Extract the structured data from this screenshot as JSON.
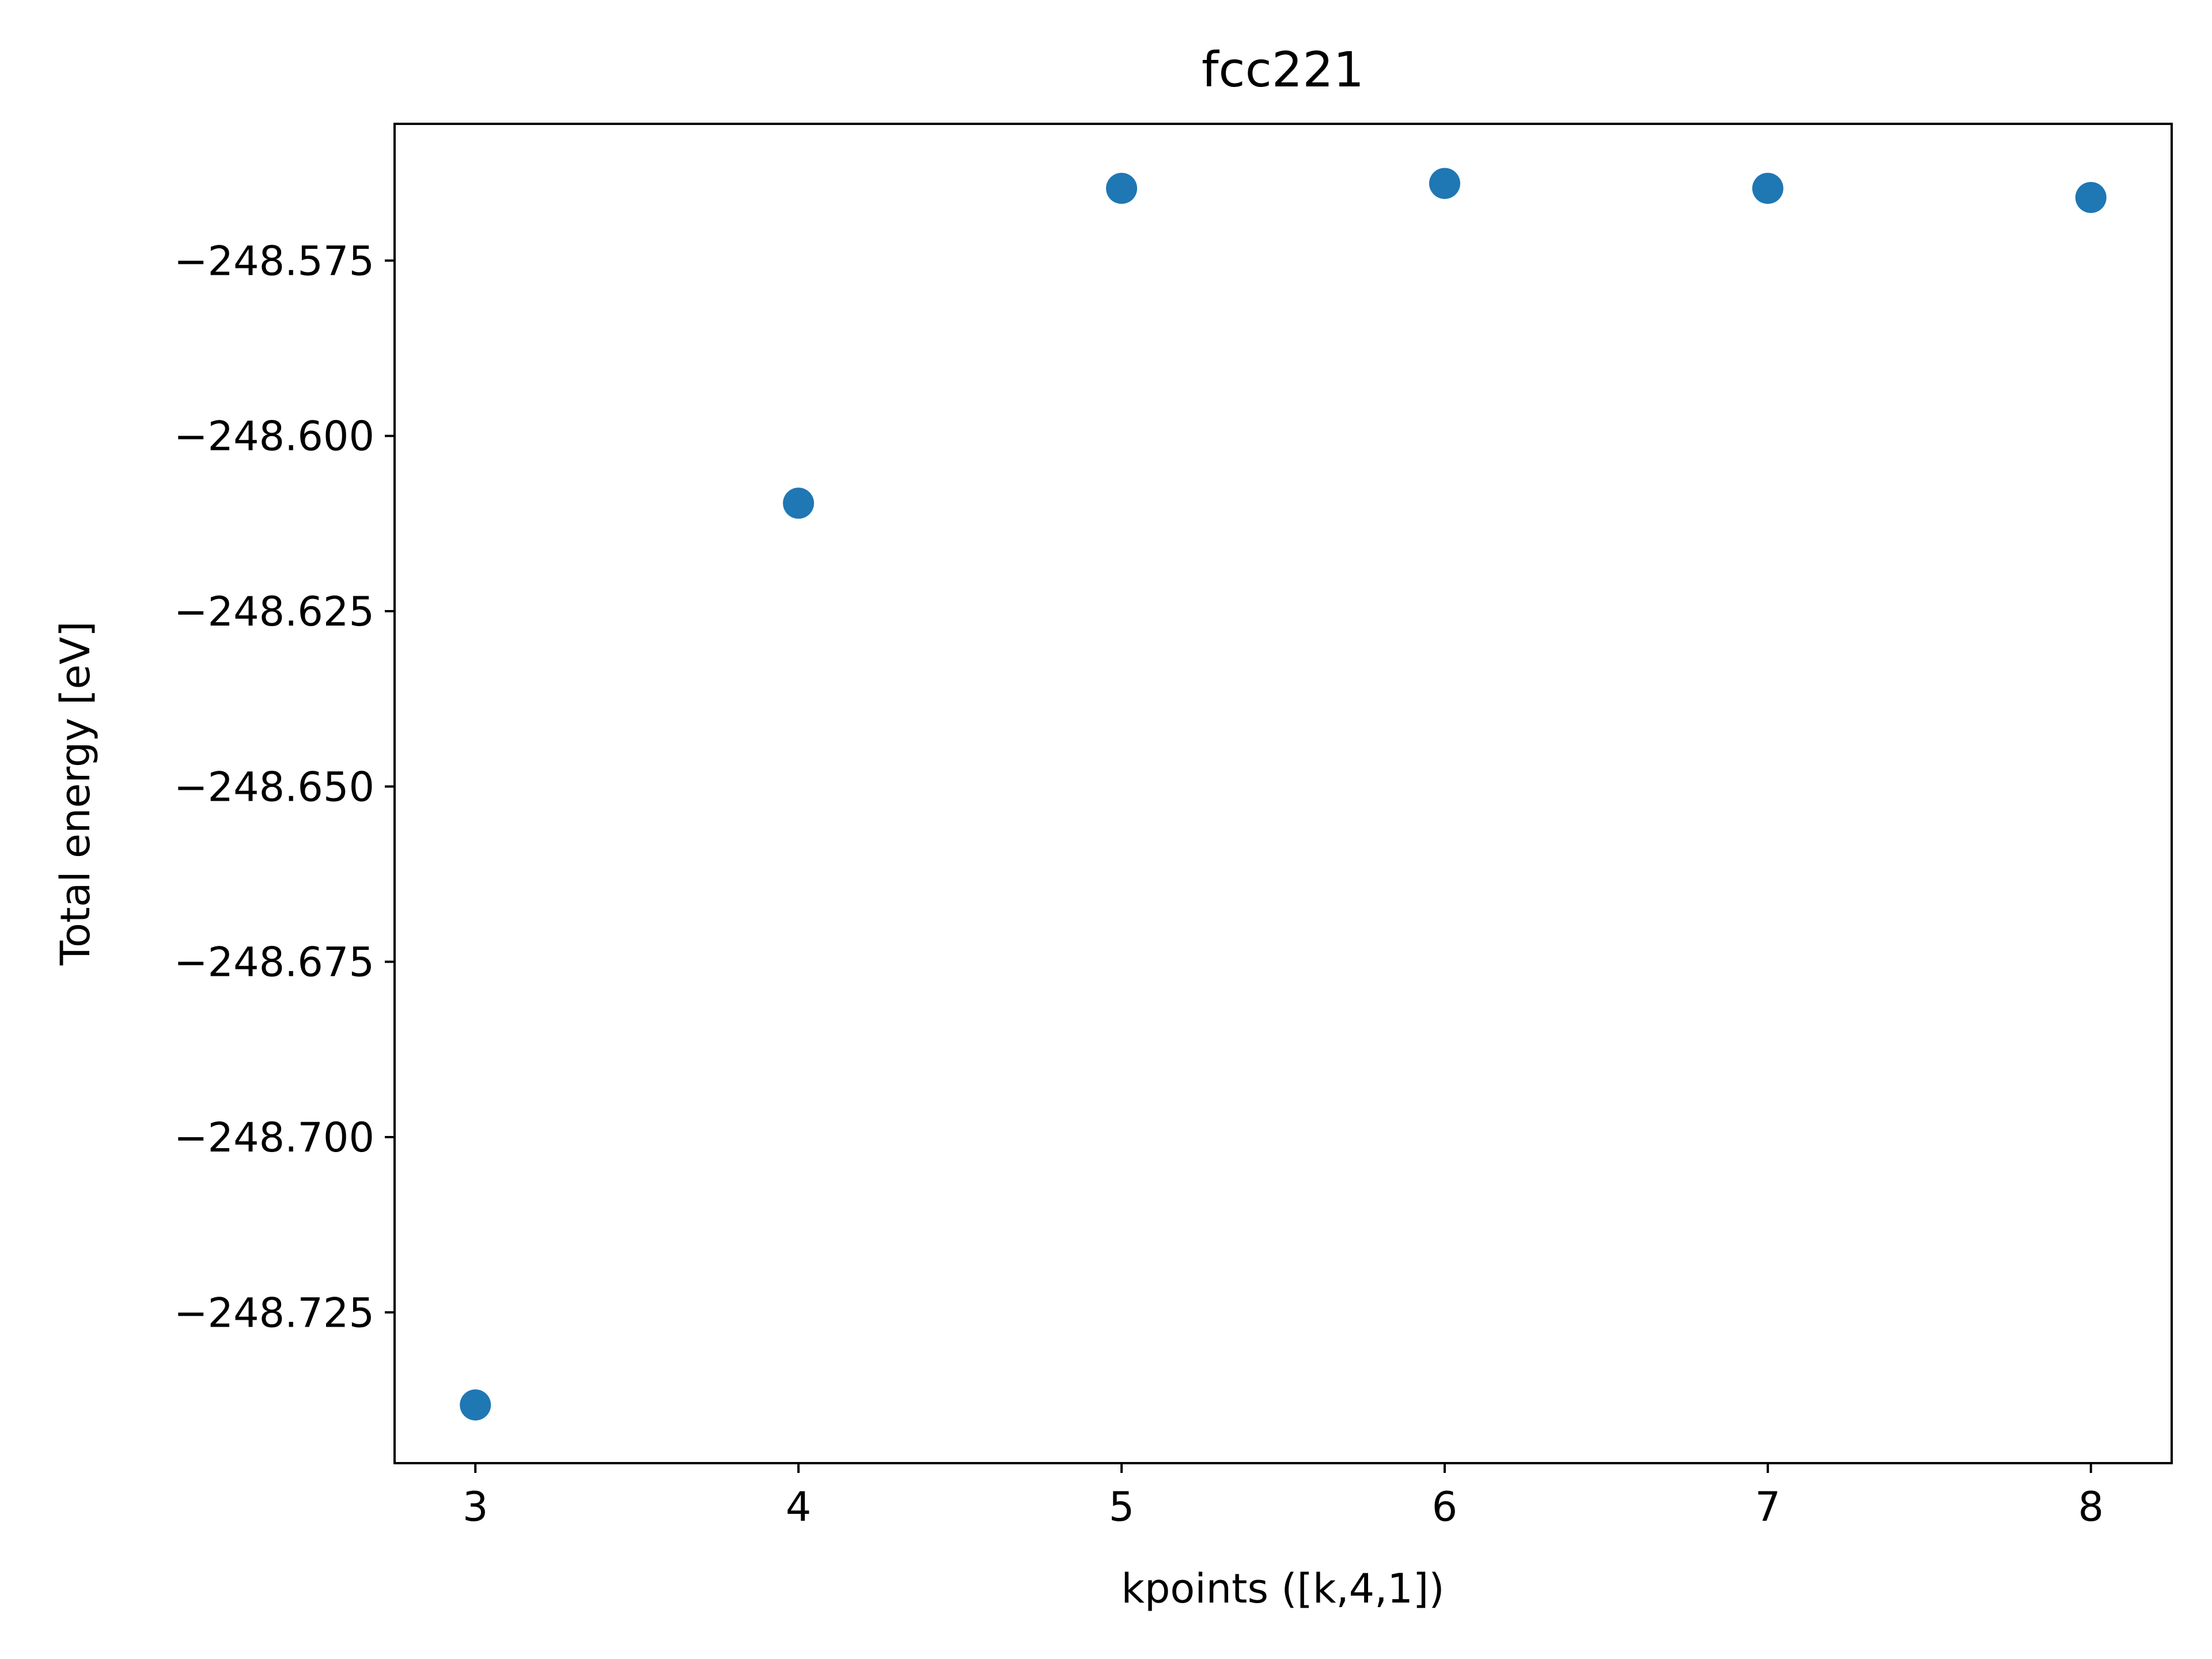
{
  "chart_data": {
    "type": "scatter",
    "title": "fcc221",
    "xlabel": "kpoints ([k,4,1])",
    "ylabel": "Total energy [eV]",
    "x": [
      3,
      4,
      5,
      6,
      7,
      8
    ],
    "y": [
      -248.7382,
      -248.6096,
      -248.5647,
      -248.564,
      -248.5647,
      -248.566
    ],
    "xlim": [
      2.75,
      8.25
    ],
    "ylim": [
      -248.7465,
      -248.5555
    ],
    "x_ticks": [
      3,
      4,
      5,
      6,
      7,
      8
    ],
    "x_tick_labels": [
      "3",
      "4",
      "5",
      "6",
      "7",
      "8"
    ],
    "y_ticks": [
      -248.725,
      -248.7,
      -248.675,
      -248.65,
      -248.625,
      -248.6,
      -248.575
    ],
    "y_tick_labels": [
      "−248.725",
      "−248.700",
      "−248.675",
      "−248.650",
      "−248.625",
      "−248.600",
      "−248.575"
    ],
    "grid": false,
    "legend": "none",
    "marker_color": "#1f77b4",
    "axes_color": "#000000",
    "background_color": "#ffffff"
  }
}
